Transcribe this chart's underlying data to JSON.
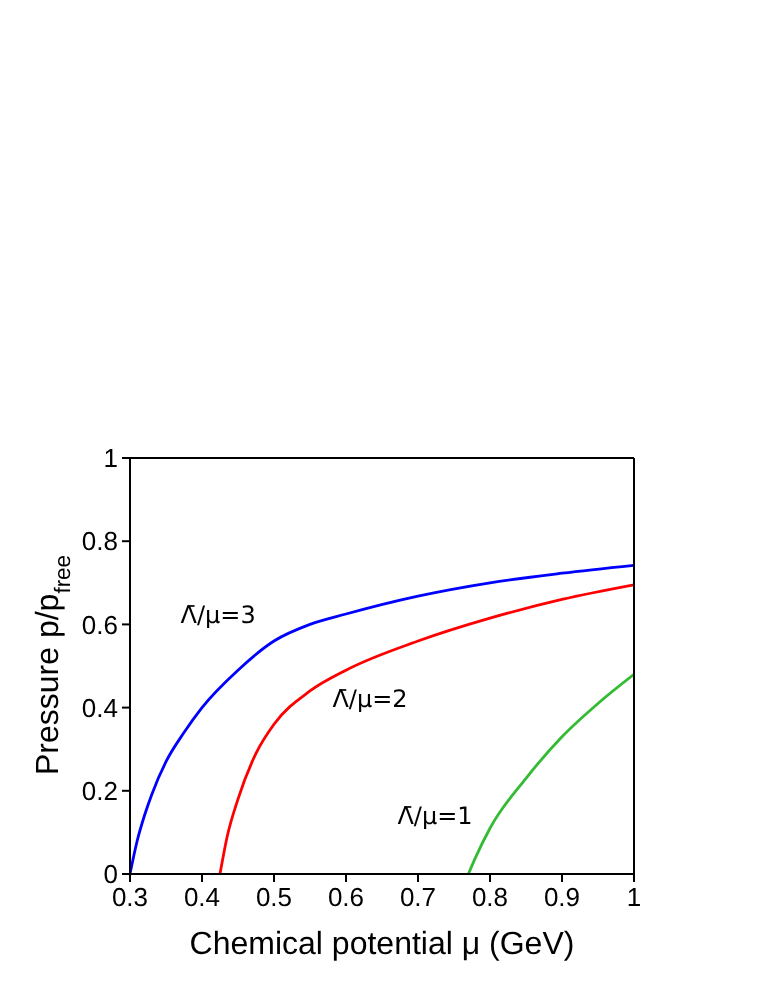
{
  "chart_data": {
    "type": "line",
    "xlabel": "Chemical potential μ (GeV)",
    "ylabel": "Pressure p/p$_{free}$",
    "xlim": [
      0.3,
      1
    ],
    "ylim": [
      0,
      1
    ],
    "xticks": [
      0.3,
      0.4,
      0.5,
      0.6,
      0.7,
      0.8,
      0.9,
      1
    ],
    "yticks": [
      0,
      0.2,
      0.4,
      0.6,
      0.8,
      1
    ],
    "legend": false,
    "marker": "none",
    "line_style": "solid",
    "series": [
      {
        "name": "Λ̄/μ=3",
        "color": "#0000ff",
        "x": [
          0.3,
          0.31,
          0.32,
          0.33,
          0.35,
          0.375,
          0.4,
          0.45,
          0.5,
          0.55,
          0.6,
          0.7,
          0.8,
          0.9,
          1
        ],
        "values": [
          0,
          0.08,
          0.14,
          0.19,
          0.27,
          0.34,
          0.4,
          0.49,
          0.56,
          0.6,
          0.625,
          0.668,
          0.7,
          0.723,
          0.742
        ]
      },
      {
        "name": "Λ̄/μ=2",
        "color": "#ff0000",
        "x": [
          0.425,
          0.435,
          0.45,
          0.475,
          0.5,
          0.55,
          0.6,
          0.7,
          0.8,
          0.9,
          1
        ],
        "values": [
          0,
          0.09,
          0.18,
          0.29,
          0.36,
          0.44,
          0.49,
          0.56,
          0.615,
          0.66,
          0.695
        ]
      },
      {
        "name": "Λ̄/μ=1",
        "color": "#33bb33",
        "x": [
          0.77,
          0.78,
          0.8,
          0.85,
          0.9,
          0.95,
          1
        ],
        "values": [
          0,
          0.04,
          0.11,
          0.23,
          0.33,
          0.41,
          0.48
        ]
      }
    ]
  }
}
